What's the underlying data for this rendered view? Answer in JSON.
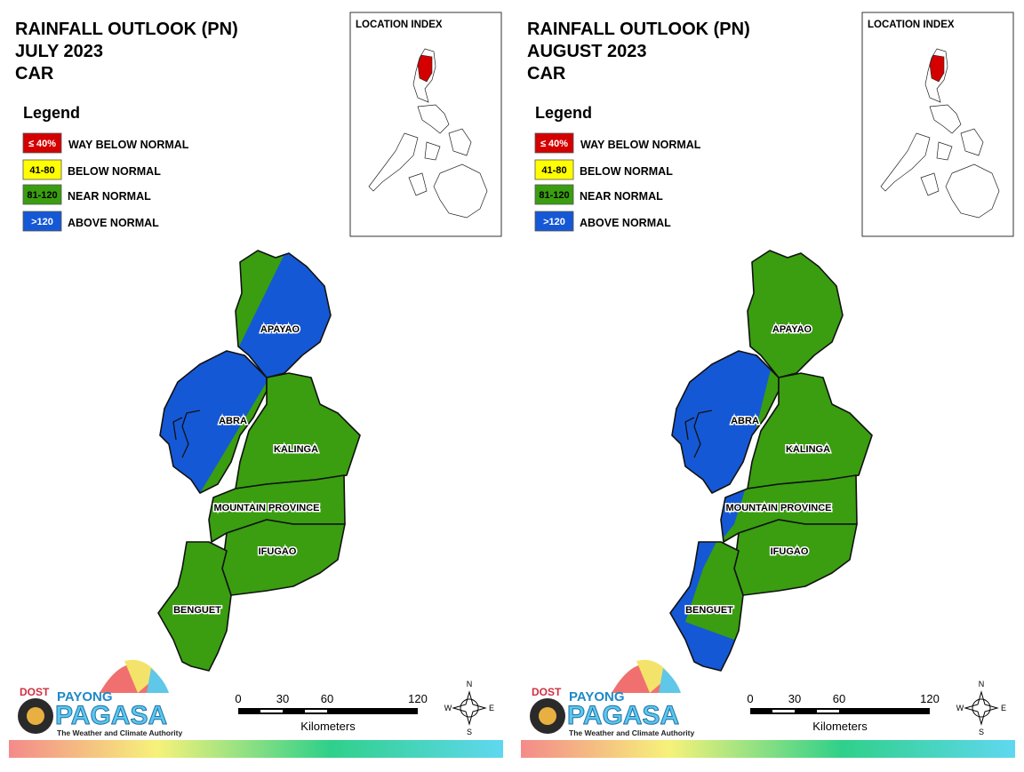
{
  "panels": [
    {
      "title": [
        "RAINFALL OUTLOOK (PN)",
        "JULY 2023",
        "CAR"
      ],
      "legend": {
        "title": "Legend",
        "items": [
          {
            "range": "≤ 40%",
            "label": "WAY BELOW NORMAL"
          },
          {
            "range": "41-80",
            "label": "BELOW NORMAL"
          },
          {
            "range": "81-120",
            "label": "NEAR NORMAL"
          },
          {
            "range": ">120",
            "label": "ABOVE NORMAL"
          }
        ]
      },
      "location_index": "LOCATION INDEX",
      "provinces": [
        "APAYAO",
        "ABRA",
        "KALINGA",
        "MOUNTAIN PROVINCE",
        "IFUGAO",
        "BENGUET"
      ],
      "scale": {
        "ticks": [
          0,
          30,
          60,
          120
        ],
        "unit": "Kilometers"
      },
      "compass": [
        "N",
        "E",
        "S",
        "W"
      ],
      "logo": {
        "agency": "DOST",
        "brand_top": "PAYONG",
        "brand": "PAGASA",
        "tagline": "The Weather and Climate Authority"
      }
    },
    {
      "title": [
        "RAINFALL OUTLOOK (PN)",
        "AUGUST 2023",
        "CAR"
      ],
      "legend": {
        "title": "Legend",
        "items": [
          {
            "range": "≤ 40%",
            "label": "WAY BELOW NORMAL"
          },
          {
            "range": "41-80",
            "label": "BELOW NORMAL"
          },
          {
            "range": "81-120",
            "label": "NEAR NORMAL"
          },
          {
            "range": ">120",
            "label": "ABOVE NORMAL"
          }
        ]
      },
      "location_index": "LOCATION INDEX",
      "provinces": [
        "APAYAO",
        "ABRA",
        "KALINGA",
        "MOUNTAIN PROVINCE",
        "IFUGAO",
        "BENGUET"
      ],
      "scale": {
        "ticks": [
          0,
          30,
          60,
          120
        ],
        "unit": "Kilometers"
      },
      "compass": [
        "N",
        "E",
        "S",
        "W"
      ],
      "logo": {
        "agency": "DOST",
        "brand_top": "PAYONG",
        "brand": "PAGASA",
        "tagline": "The Weather and Climate Authority"
      }
    }
  ]
}
